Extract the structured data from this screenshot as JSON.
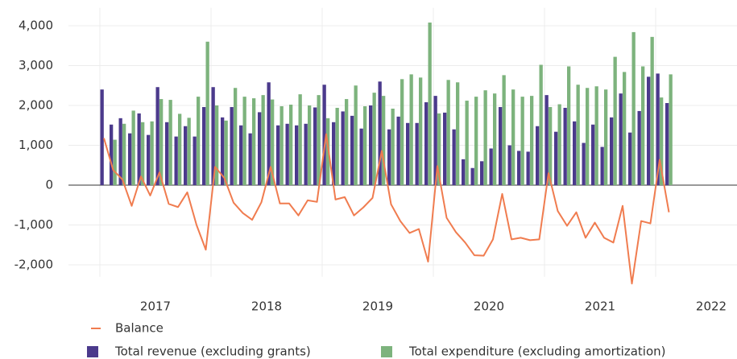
{
  "chart_data": {
    "type": "combo",
    "categories": [
      null,
      null,
      null,
      null,
      null,
      null,
      "2017",
      null,
      null,
      null,
      null,
      null,
      null,
      null,
      null,
      null,
      null,
      null,
      "2018",
      null,
      null,
      null,
      null,
      null,
      null,
      null,
      null,
      null,
      null,
      null,
      "2019",
      null,
      null,
      null,
      null,
      null,
      null,
      null,
      null,
      null,
      null,
      null,
      "2020",
      null,
      null,
      null,
      null,
      null,
      null,
      null,
      null,
      null,
      null,
      null,
      "2021",
      null,
      null,
      null,
      null,
      null,
      null,
      null,
      null,
      null,
      null,
      null,
      "2022",
      null,
      null
    ],
    "series": [
      {
        "name": "Balance",
        "type": "line",
        "color": "#f07c4f",
        "values": [
          1180,
          380,
          140,
          -520,
          220,
          -260,
          320,
          -470,
          -550,
          -180,
          -1000,
          -1620,
          460,
          180,
          -440,
          -700,
          -870,
          -430,
          460,
          -460,
          -460,
          -760,
          -380,
          -420,
          1280,
          -360,
          -300,
          -760,
          -560,
          -320,
          860,
          -480,
          -900,
          -1200,
          -1100,
          -1920,
          480,
          -820,
          -1180,
          -1440,
          -1760,
          -1770,
          -1360,
          -220,
          -1360,
          -1320,
          -1380,
          -1360,
          300,
          -650,
          -1020,
          -680,
          -1320,
          -940,
          -1320,
          -1440,
          -520,
          -2470,
          -900,
          -960,
          640,
          -680,
          null,
          null,
          null,
          null,
          null,
          null,
          null
        ]
      },
      {
        "name": "Total revenue (excluding grants)",
        "type": "bar",
        "color": "#4b3a8c",
        "values": [
          2400,
          1520,
          1680,
          1300,
          1800,
          1260,
          2460,
          1580,
          1220,
          1480,
          1220,
          1960,
          2460,
          1700,
          1960,
          1500,
          1300,
          1830,
          2580,
          1500,
          1540,
          1500,
          1540,
          1950,
          2520,
          1580,
          1850,
          1740,
          1420,
          2000,
          2600,
          1400,
          1720,
          1560,
          1560,
          2080,
          2240,
          1820,
          1400,
          650,
          430,
          600,
          920,
          1960,
          1000,
          860,
          840,
          1480,
          2260,
          1340,
          1940,
          1600,
          1060,
          1520,
          960,
          1700,
          2300,
          1320,
          1860,
          2720,
          2800,
          2060,
          null,
          null,
          null,
          null,
          null,
          null,
          null
        ]
      },
      {
        "name": "Total expenditure (excluding amortization)",
        "type": "bar",
        "color": "#7db37d",
        "values": [
          null,
          1140,
          1540,
          1870,
          1580,
          1600,
          2160,
          2140,
          1790,
          1690,
          2220,
          3600,
          2000,
          1620,
          2440,
          2220,
          2180,
          2260,
          2150,
          1980,
          2020,
          2280,
          2000,
          2260,
          1680,
          1940,
          2160,
          2500,
          1980,
          2320,
          2240,
          1920,
          2660,
          2780,
          2700,
          4080,
          1800,
          2640,
          2580,
          2120,
          2220,
          2380,
          2300,
          2760,
          2400,
          2220,
          2240,
          3020,
          1960,
          2030,
          2980,
          2520,
          2440,
          2480,
          2400,
          3220,
          2840,
          3840,
          2980,
          3720,
          2200,
          2780,
          null,
          null,
          null,
          null,
          null,
          null,
          null
        ]
      }
    ],
    "ylim": [
      -2300,
      4450
    ],
    "yticks": [
      {
        "value": -2000,
        "label": "-2,000"
      },
      {
        "value": -1000,
        "label": "-1,000"
      },
      0,
      {
        "value": 1000,
        "label": "1,000"
      },
      {
        "value": 2000,
        "label": "2,000"
      },
      {
        "value": 3000,
        "label": "3,000"
      },
      {
        "value": 4000,
        "label": "4,000"
      }
    ],
    "grid": true
  }
}
